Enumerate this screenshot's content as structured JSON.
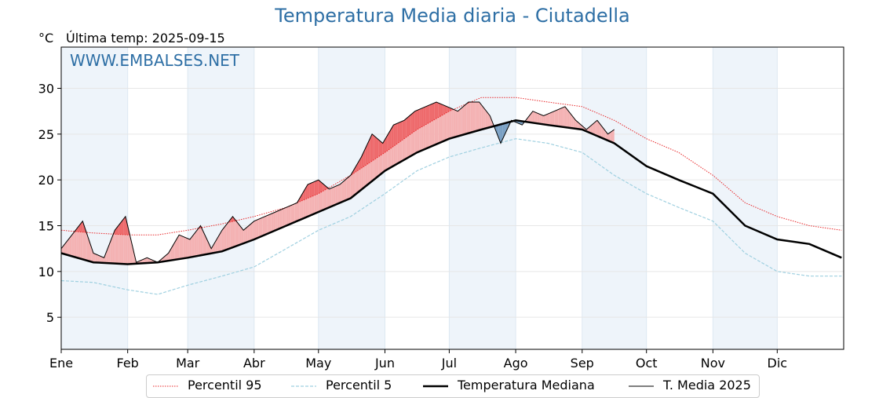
{
  "title": "Temperatura Media diaria - Ciutadella",
  "unit_label": "°C",
  "last_temp_label": "Última temp: 2025-09-15",
  "watermark": "WWW.EMBALSES.NET",
  "colors": {
    "title": "#2e6fa5",
    "p95": "#e8282a",
    "p5": "#9fd0e0",
    "median": "#000000",
    "mean2025": "#000000",
    "above_fill": "#f4b2b3",
    "above_p95_fill": "#ee6a6c",
    "below_fill": "#7aa0c4",
    "band": "#eef4fa"
  },
  "chart_data": {
    "type": "line",
    "title": "Temperatura Media diaria - Ciutadella",
    "xlabel": "",
    "ylabel": "°C",
    "ylim": [
      1.5,
      34.5
    ],
    "yticks": [
      5,
      10,
      15,
      20,
      25,
      30
    ],
    "xlim": [
      0,
      365
    ],
    "month_labels": [
      "Ene",
      "Feb",
      "Mar",
      "Abr",
      "May",
      "Jun",
      "Jul",
      "Ago",
      "Sep",
      "Oct",
      "Nov",
      "Dic"
    ],
    "month_start_days": [
      0,
      31,
      59,
      90,
      120,
      151,
      181,
      212,
      243,
      273,
      304,
      334
    ],
    "grid": true,
    "legend_position": "bottom",
    "series": [
      {
        "name": "Percentil 95",
        "style": "dotted",
        "x": [
          0,
          15,
          31,
          45,
          59,
          75,
          90,
          105,
          120,
          135,
          151,
          166,
          181,
          196,
          212,
          227,
          243,
          258,
          273,
          288,
          304,
          319,
          334,
          349,
          364
        ],
        "values": [
          14.5,
          14.2,
          14.0,
          14.0,
          14.5,
          15.2,
          16.0,
          17.0,
          18.5,
          20.5,
          23.0,
          25.5,
          27.5,
          29.0,
          29.0,
          28.5,
          28.0,
          26.5,
          24.5,
          23.0,
          20.5,
          17.5,
          16.0,
          15.0,
          14.5
        ]
      },
      {
        "name": "Percentil 5",
        "style": "dashed",
        "x": [
          0,
          15,
          31,
          45,
          59,
          75,
          90,
          105,
          120,
          135,
          151,
          166,
          181,
          196,
          212,
          227,
          243,
          258,
          273,
          288,
          304,
          319,
          334,
          349,
          364
        ],
        "values": [
          9.0,
          8.8,
          8.0,
          7.5,
          8.5,
          9.5,
          10.5,
          12.5,
          14.5,
          16.0,
          18.5,
          21.0,
          22.5,
          23.5,
          24.5,
          24.0,
          23.0,
          20.5,
          18.5,
          17.0,
          15.5,
          12.0,
          10.0,
          9.5,
          9.5
        ]
      },
      {
        "name": "Temperatura Mediana",
        "style": "solid-thick",
        "x": [
          0,
          15,
          31,
          45,
          59,
          75,
          90,
          105,
          120,
          135,
          151,
          166,
          181,
          196,
          212,
          227,
          243,
          258,
          273,
          288,
          304,
          319,
          334,
          349,
          364
        ],
        "values": [
          12.0,
          11.0,
          10.8,
          11.0,
          11.5,
          12.2,
          13.5,
          15.0,
          16.5,
          18.0,
          21.0,
          23.0,
          24.5,
          25.5,
          26.5,
          26.0,
          25.5,
          24.0,
          21.5,
          20.0,
          18.5,
          15.0,
          13.5,
          13.0,
          11.5
        ]
      },
      {
        "name": "T. Media 2025",
        "style": "solid-thin",
        "x": [
          0,
          5,
          10,
          15,
          20,
          25,
          30,
          35,
          40,
          45,
          50,
          55,
          60,
          65,
          70,
          75,
          80,
          85,
          90,
          95,
          100,
          105,
          110,
          115,
          120,
          125,
          130,
          135,
          140,
          145,
          150,
          155,
          160,
          165,
          170,
          175,
          180,
          185,
          190,
          195,
          200,
          205,
          210,
          215,
          220,
          225,
          230,
          235,
          240,
          245,
          250,
          255,
          258
        ],
        "values": [
          12.5,
          14.0,
          15.5,
          12.0,
          11.5,
          14.5,
          16.0,
          11.0,
          11.5,
          11.0,
          12.0,
          14.0,
          13.5,
          15.0,
          12.5,
          14.5,
          16.0,
          14.5,
          15.5,
          16.0,
          16.5,
          17.0,
          17.5,
          19.5,
          20.0,
          19.0,
          19.5,
          20.5,
          22.5,
          25.0,
          24.0,
          26.0,
          26.5,
          27.5,
          28.0,
          28.5,
          28.0,
          27.5,
          28.5,
          28.5,
          27.0,
          24.0,
          26.5,
          26.0,
          27.5,
          27.0,
          27.5,
          28.0,
          26.5,
          25.5,
          26.5,
          25.0,
          25.5
        ]
      }
    ]
  },
  "legend": [
    {
      "name": "Percentil 95"
    },
    {
      "name": "Percentil 5"
    },
    {
      "name": "Temperatura Mediana"
    },
    {
      "name": "T. Media 2025"
    }
  ]
}
